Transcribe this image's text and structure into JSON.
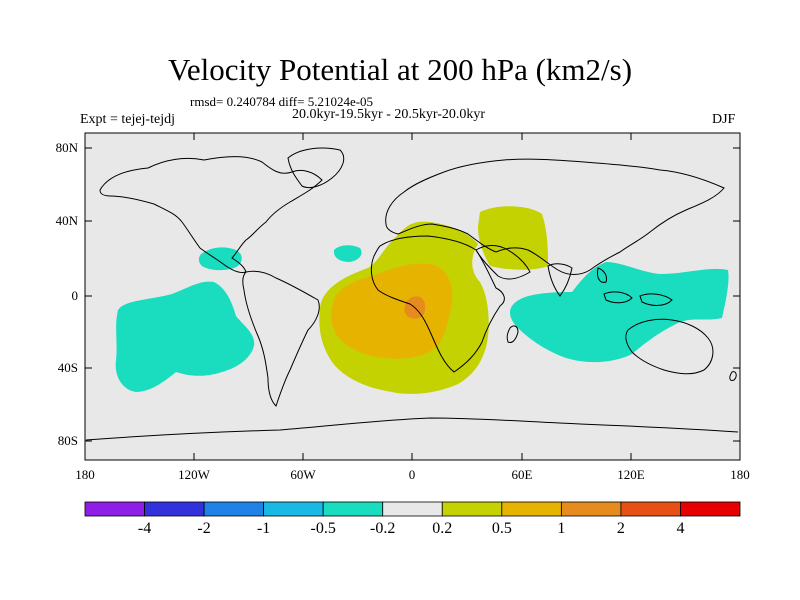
{
  "title": "Velocity Potential at 200 hPa (km2/s)",
  "stats": "rmsd= 0.240784 diff= 5.21024e-05",
  "experiment": "Expt = tejej-tejdj",
  "period": "20.0kyr-19.5kyr - 20.5kyr-20.0kyr",
  "season": "DJF",
  "map": {
    "projection": "cylindrical equidistant",
    "lon_range": [
      -180,
      180
    ],
    "lat_range": [
      -90,
      90
    ],
    "lat_labels": [
      "80N",
      "40N",
      "0",
      "40S",
      "80S"
    ],
    "lon_labels": [
      "180",
      "120W",
      "60W",
      "0",
      "60E",
      "120E",
      "180"
    ],
    "anomaly_regions": [
      {
        "name": "central-africa-atlantic",
        "level": "0.2 to 0.5",
        "color": "#bfd400"
      },
      {
        "name": "arabia-positive",
        "level": "0.2 to 0.5",
        "color": "#bfd400"
      },
      {
        "name": "south-atlantic-core",
        "level": "0.5 to 1",
        "color": "#e0ad00"
      },
      {
        "name": "congo-peak",
        "level": "1 to 2",
        "color": "#e07a1e"
      },
      {
        "name": "east-pacific-negative",
        "level": "-0.5 to -0.2",
        "color": "#1ad9b8"
      },
      {
        "name": "mexico-negative",
        "level": "-0.5 to -0.2",
        "color": "#1ad9b8"
      },
      {
        "name": "north-atlantic-negative",
        "level": "-0.5 to -0.2",
        "color": "#1ad9b8"
      },
      {
        "name": "indo-pacific-negative",
        "level": "-0.5 to -0.2",
        "color": "#1ad9b8"
      }
    ]
  },
  "colorbar": {
    "colors": [
      "#8f1ee6",
      "#3232dc",
      "#1e82e6",
      "#19b9e6",
      "#1adcbe",
      "#e8e8e8",
      "#c3d200",
      "#e6b400",
      "#e68c1e",
      "#e65014",
      "#e60000"
    ],
    "labels": [
      "-4",
      "-2",
      "-1",
      "-0.5",
      "-0.2",
      "0.2",
      "0.5",
      "1",
      "2",
      "4"
    ]
  }
}
